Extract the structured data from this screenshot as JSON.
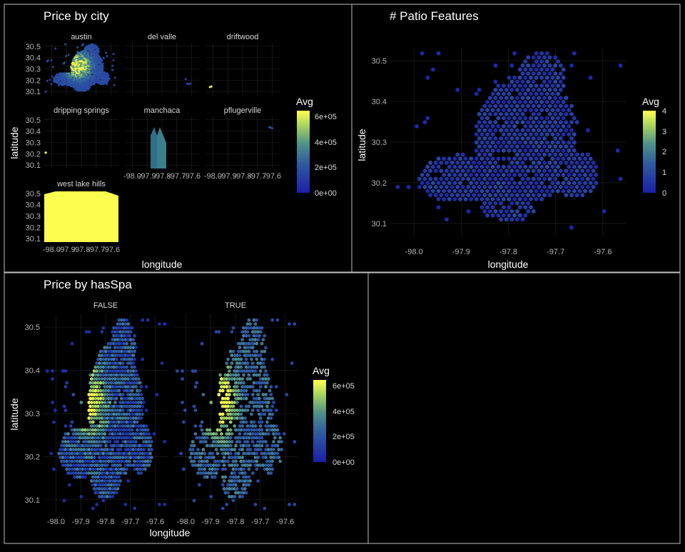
{
  "colors": {
    "background": "#000000",
    "scale_low": "#1a1fa8",
    "scale_mid": "#3d7c8e",
    "scale_high": "#ffff4f",
    "border": "#bfbfbf"
  },
  "chart_data": [
    {
      "type": "heatmap",
      "subtype": "hexbin-faceted",
      "title": "Price by city",
      "xlabel": "longitude",
      "ylabel": "latitude",
      "facets": [
        "austin",
        "del valle",
        "driftwood",
        "dripping springs",
        "manchaca",
        "pflugerville",
        "west lake hills"
      ],
      "x_ticks": [
        "-98.0",
        "-97.9",
        "-97.8",
        "-97.7",
        "-97.6"
      ],
      "y_ticks": [
        "30.1",
        "30.2",
        "30.3",
        "30.4",
        "30.5"
      ],
      "xlim": [
        -98.05,
        -97.55
      ],
      "ylim": [
        30.07,
        30.53
      ],
      "legend": {
        "title": "Avg",
        "labels": [
          "0e+00",
          "2e+05",
          "4e+05",
          "6e+05"
        ],
        "values": [
          0,
          200000,
          400000,
          600000
        ],
        "max": 650000
      }
    },
    {
      "type": "heatmap",
      "subtype": "hexbin",
      "title": "# Patio Features",
      "xlabel": "longitude",
      "ylabel": "latitude",
      "x_ticks": [
        "-98.0",
        "-97.9",
        "-97.8",
        "-97.7",
        "-97.6"
      ],
      "y_ticks": [
        "30.1",
        "30.2",
        "30.3",
        "30.4",
        "30.5"
      ],
      "xlim": [
        -98.05,
        -97.55
      ],
      "ylim": [
        30.07,
        30.53
      ],
      "legend": {
        "title": "Avg",
        "labels": [
          "0",
          "1",
          "2",
          "3",
          "4"
        ],
        "values": [
          0,
          1,
          2,
          3,
          4
        ],
        "max": 4
      }
    },
    {
      "type": "heatmap",
      "subtype": "hexbin-faceted",
      "title": "Price by hasSpa",
      "xlabel": "longitude",
      "ylabel": "latitude",
      "facets": [
        "FALSE",
        "TRUE"
      ],
      "x_ticks": [
        "-98.0",
        "-97.9",
        "-97.8",
        "-97.7",
        "-97.6"
      ],
      "y_ticks": [
        "30.1",
        "30.2",
        "30.3",
        "30.4",
        "30.5"
      ],
      "xlim": [
        -98.05,
        -97.55
      ],
      "ylim": [
        30.07,
        30.53
      ],
      "legend": {
        "title": "Avg",
        "labels": [
          "0e+00",
          "2e+05",
          "4e+05",
          "6e+05"
        ],
        "values": [
          0,
          200000,
          400000,
          600000
        ],
        "max": 650000
      }
    }
  ]
}
